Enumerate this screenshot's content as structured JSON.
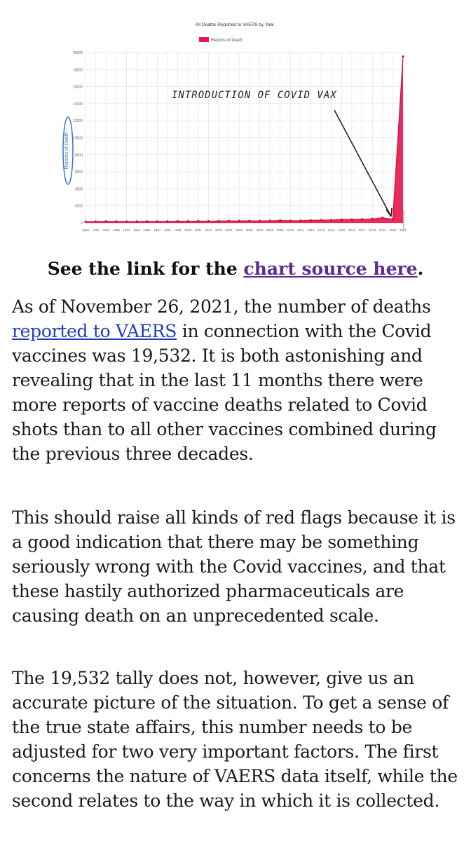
{
  "chart_data": {
    "type": "area",
    "title": "All Deaths Reported to VAERS by Year",
    "legend": "Reports of Death",
    "ylabel": "Reports of Death",
    "xlabel": "",
    "ylim": [
      0,
      20000
    ],
    "yticks": [
      0,
      2000,
      4000,
      6000,
      8000,
      10000,
      12000,
      14000,
      16000,
      18000,
      20000
    ],
    "x": [
      "1990",
      "1991",
      "1992",
      "1993",
      "1994",
      "1995",
      "1996",
      "1997",
      "1998",
      "1999",
      "2000",
      "2001",
      "2002",
      "2003",
      "2004",
      "2005",
      "2006",
      "2007",
      "2008",
      "2009",
      "2010",
      "2011",
      "2012",
      "2013",
      "2014",
      "2015",
      "2016",
      "2017",
      "2018",
      "2019",
      "2020",
      "2021"
    ],
    "values": [
      140,
      160,
      180,
      170,
      160,
      170,
      180,
      170,
      175,
      200,
      190,
      210,
      200,
      220,
      230,
      230,
      240,
      230,
      240,
      280,
      250,
      260,
      300,
      320,
      330,
      380,
      400,
      420,
      460,
      600,
      420,
      19532
    ],
    "annotation": "INTRODUCTION OF COVID VAX",
    "colors": {
      "fill": "#e8194e",
      "line": "#c8103e",
      "grid": "#e3e3e3",
      "annotation": "#222222",
      "ylabel_circle": "#3b6fd6"
    }
  },
  "caption": {
    "prefix": "See the link for the ",
    "link": "chart source here",
    "suffix": "."
  },
  "paragraph1": {
    "before_link": "As of November 26, 2021, the number of deaths ",
    "link": "reported to VAERS",
    "after_link": " in connection with the Covid vaccines was 19,532. It is both astonishing and revealing that in the last 11 months there were more reports of vaccine deaths related to Covid shots than to all other vaccines combined during the previous three decades."
  },
  "paragraph2": "This should raise all kinds of red flags because it is a good indication that there may be something seriously wrong with the Covid vaccines, and that these hastily authorized pharmaceuticals are causing death on an unprecedented scale.",
  "paragraph3": "The 19,532 tally does not, however, give us an accurate picture of the situation. To get a sense of the true state affairs, this number needs to be adjusted for two very important factors. The first concerns the nature of VAERS data itself, while the second relates to the way in which it is collected."
}
